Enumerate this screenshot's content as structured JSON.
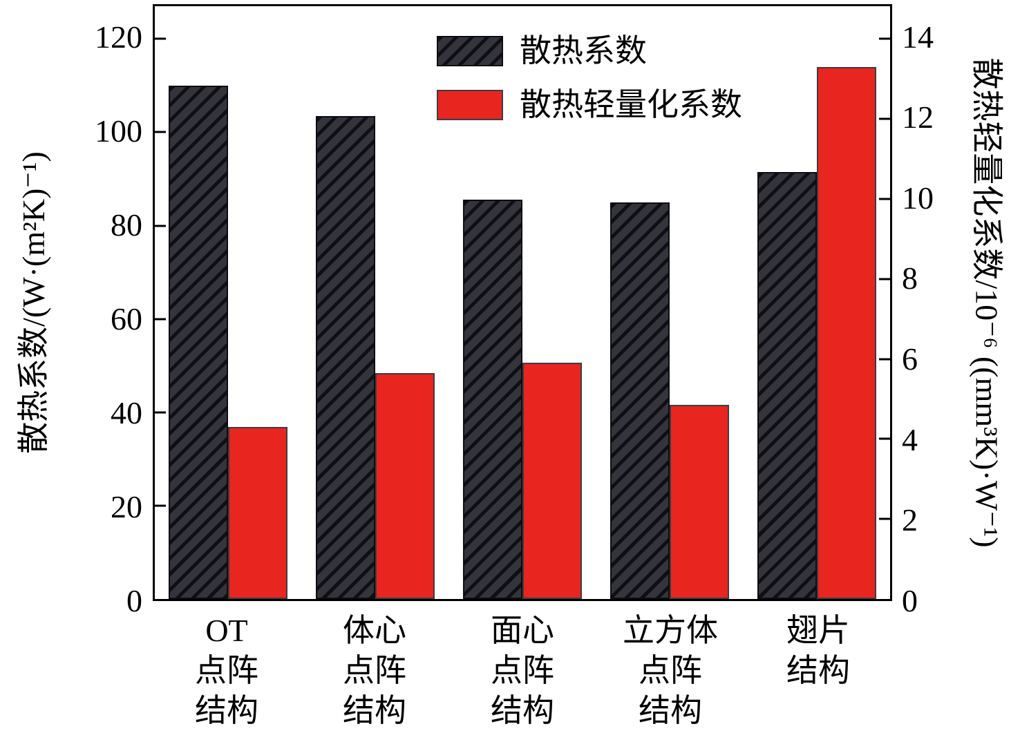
{
  "chart_data": {
    "type": "bar",
    "categories": [
      "OT\n点阵\n结构",
      "体心\n点阵\n结构",
      "面心\n点阵\n结构",
      "立方体\n点阵\n结构",
      "翅片\n结构"
    ],
    "series": [
      {
        "name": "散热系数",
        "axis": "left",
        "style": "dark-hatched",
        "color": "#2f2f37",
        "values": [
          110,
          103.5,
          85.5,
          85,
          91.5
        ]
      },
      {
        "name": "散热轻量化系数",
        "axis": "right",
        "style": "solid",
        "color": "#e8251f",
        "values": [
          4.3,
          5.65,
          5.9,
          4.85,
          13.3
        ]
      }
    ],
    "left_axis": {
      "label": "散热系数/(W·(m²K)⁻¹)",
      "ticks": [
        0,
        20,
        40,
        60,
        80,
        100,
        120
      ],
      "range": [
        0,
        120
      ],
      "scale_max": 127
    },
    "right_axis": {
      "label": "散热轻量化系数/10⁻⁶ ((mm³K)·W⁻¹)",
      "ticks": [
        0,
        2,
        4,
        6,
        8,
        10,
        12,
        14
      ],
      "range": [
        0,
        14
      ],
      "scale_max": 14.8167
    },
    "legend": {
      "position": "top-center",
      "entries": [
        "散热系数",
        "散热轻量化系数"
      ]
    },
    "grid": false
  },
  "colors": {
    "dark_bar": "#34343c",
    "dark_bar_hatch_line": "#0f0f13",
    "red_bar": "#e8251f",
    "axis": "#000000",
    "background": "#ffffff"
  }
}
